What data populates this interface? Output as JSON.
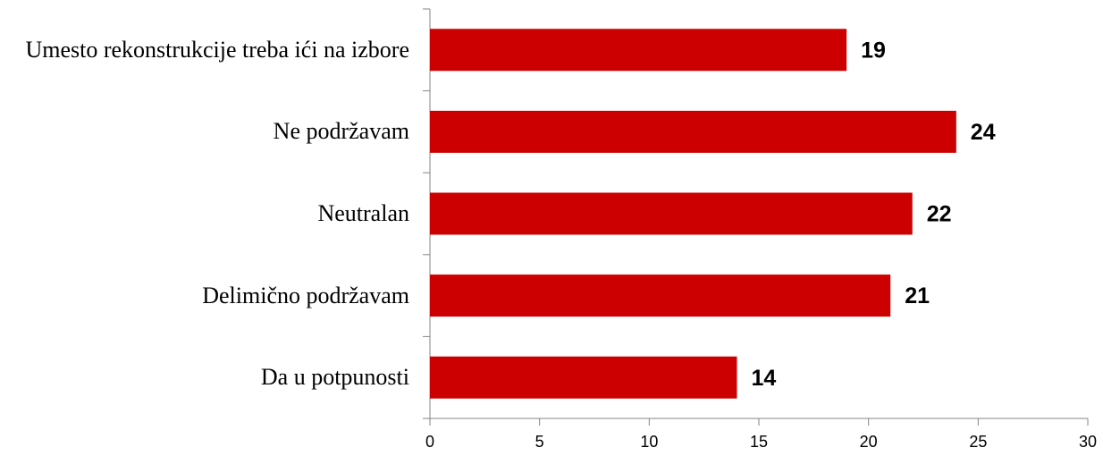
{
  "chart_data": {
    "type": "bar",
    "orientation": "horizontal",
    "categories": [
      "Umesto rekonstrukcije treba ići na izbore",
      "Ne podržavam",
      "Neutralan",
      "Delimično podržavam",
      "Da u potpunosti"
    ],
    "values": [
      19,
      24,
      22,
      21,
      14
    ],
    "color": "#cc0000",
    "xlim": [
      0,
      30
    ],
    "xticks": [
      0,
      5,
      10,
      15,
      20,
      25,
      30
    ],
    "grid": false
  }
}
